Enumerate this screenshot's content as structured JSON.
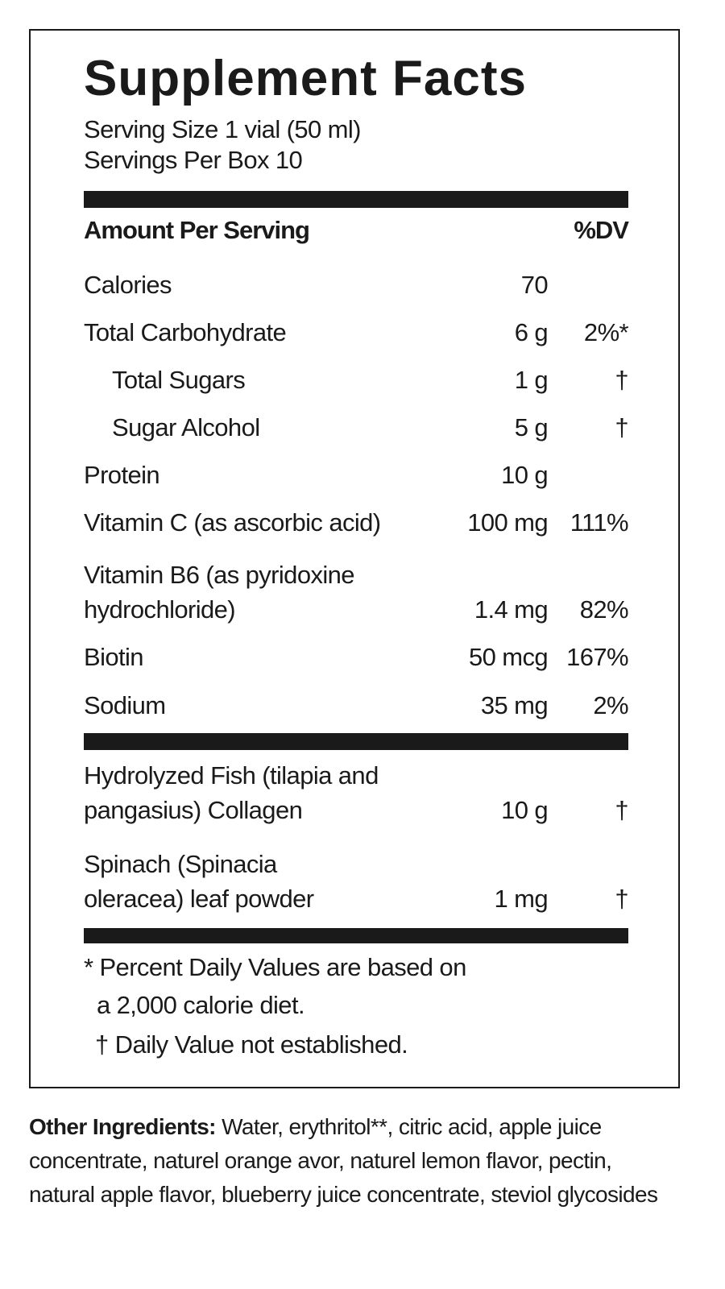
{
  "title": "Supplement Facts",
  "serving_size": "Serving Size 1 vial (50 ml)",
  "servings_per_box": "Servings Per Box 10",
  "header": {
    "amount": "Amount Per Serving",
    "dv": "%DV"
  },
  "nutrients": [
    {
      "name": "Calories",
      "amount": "70",
      "dv": ""
    },
    {
      "name": "Total Carbohydrate",
      "amount": "6 g",
      "dv": "2%*"
    },
    {
      "name": "Total Sugars",
      "amount": "1 g",
      "dv": "†"
    },
    {
      "name": "Sugar Alcohol",
      "amount": "5 g",
      "dv": "†"
    },
    {
      "name": "Protein",
      "amount": "10 g",
      "dv": ""
    },
    {
      "name": "Vitamin C (as ascorbic acid)",
      "amount": "100 mg",
      "dv": "111%"
    },
    {
      "name_line1": "Vitamin B6 (as pyridoxine",
      "name_line2": "hydrochloride)",
      "amount": "1.4 mg",
      "dv": "82%"
    },
    {
      "name": "Biotin",
      "amount": "50 mcg",
      "dv": "167%"
    },
    {
      "name": "Sodium",
      "amount": "35 mg",
      "dv": "2%"
    }
  ],
  "other_blend": [
    {
      "name_line1": "Hydrolyzed Fish (tilapia and",
      "name_line2": "pangasius) Collagen",
      "amount": "10 g",
      "dv": "†"
    },
    {
      "name_line1": "Spinach (Spinacia",
      "name_line2": "oleracea) leaf powder",
      "amount": "1 mg",
      "dv": "†"
    }
  ],
  "footnotes": {
    "line1": "* Percent Daily Values are based on",
    "line2": "a 2,000 calorie diet.",
    "line3": "† Daily Value not established."
  },
  "other_ingredients": {
    "label": "Other Ingredients:",
    "text": " Water, erythritol**, citric acid, apple juice concentrate, naturel orange avor, naturel lemon flavor, pectin, natural apple flavor, blueberry juice concentrate, steviol glycosides"
  }
}
